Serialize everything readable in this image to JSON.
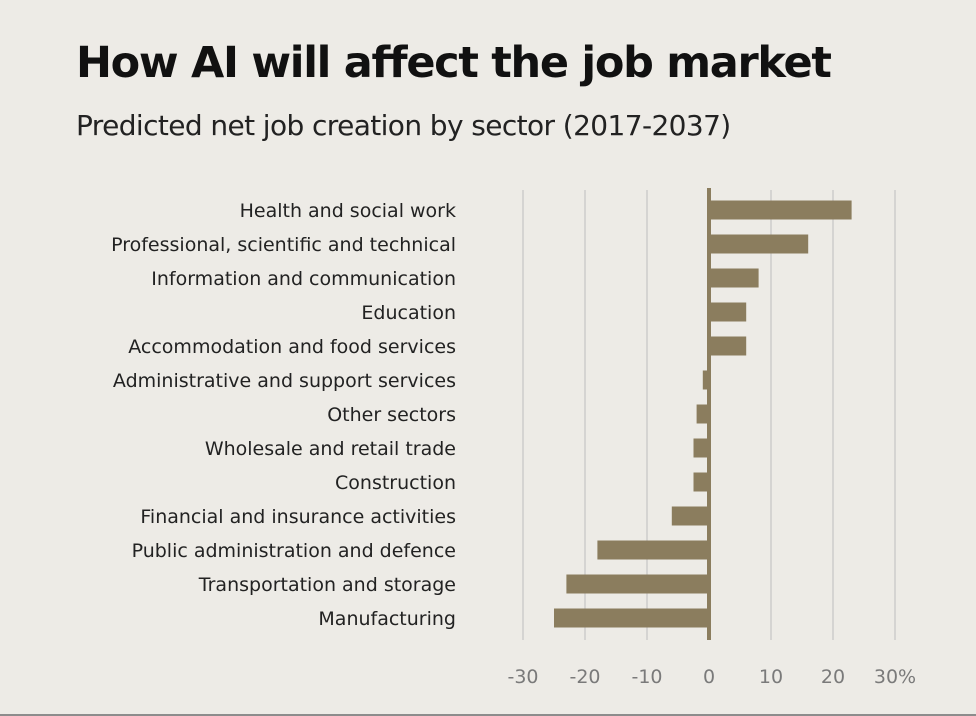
{
  "title": "How AI will affect the job market",
  "subtitle": "Predicted net job creation by sector (2017-2037)",
  "colors": {
    "background": "#edebe6",
    "bar": "#8b7d5e",
    "zero_line": "#8b7d5e",
    "grid": "#bdbdbd",
    "tick_text": "#7a7a7a",
    "label_text": "#222222"
  },
  "chart_data": {
    "type": "bar",
    "orientation": "horizontal",
    "categories": [
      "Health and social work",
      "Professional, scientific and technical",
      "Information and communication",
      "Education",
      "Accommodation and food services",
      "Administrative and support services",
      "Other sectors",
      "Wholesale and retail trade",
      "Construction",
      "Financial and insurance activities",
      "Public administration and defence",
      "Transportation and storage",
      "Manufacturing"
    ],
    "values": [
      23,
      16,
      8,
      6,
      6,
      -1,
      -2,
      -2.5,
      -2.5,
      -6,
      -18,
      -23,
      -25
    ],
    "xlim": [
      -30,
      30
    ],
    "ticks": [
      -30,
      -20,
      -10,
      0,
      10,
      20,
      30
    ],
    "tick_labels": [
      "-30",
      "-20",
      "-10",
      "0",
      "10",
      "20",
      "30%"
    ],
    "grid": true,
    "legend": false
  }
}
